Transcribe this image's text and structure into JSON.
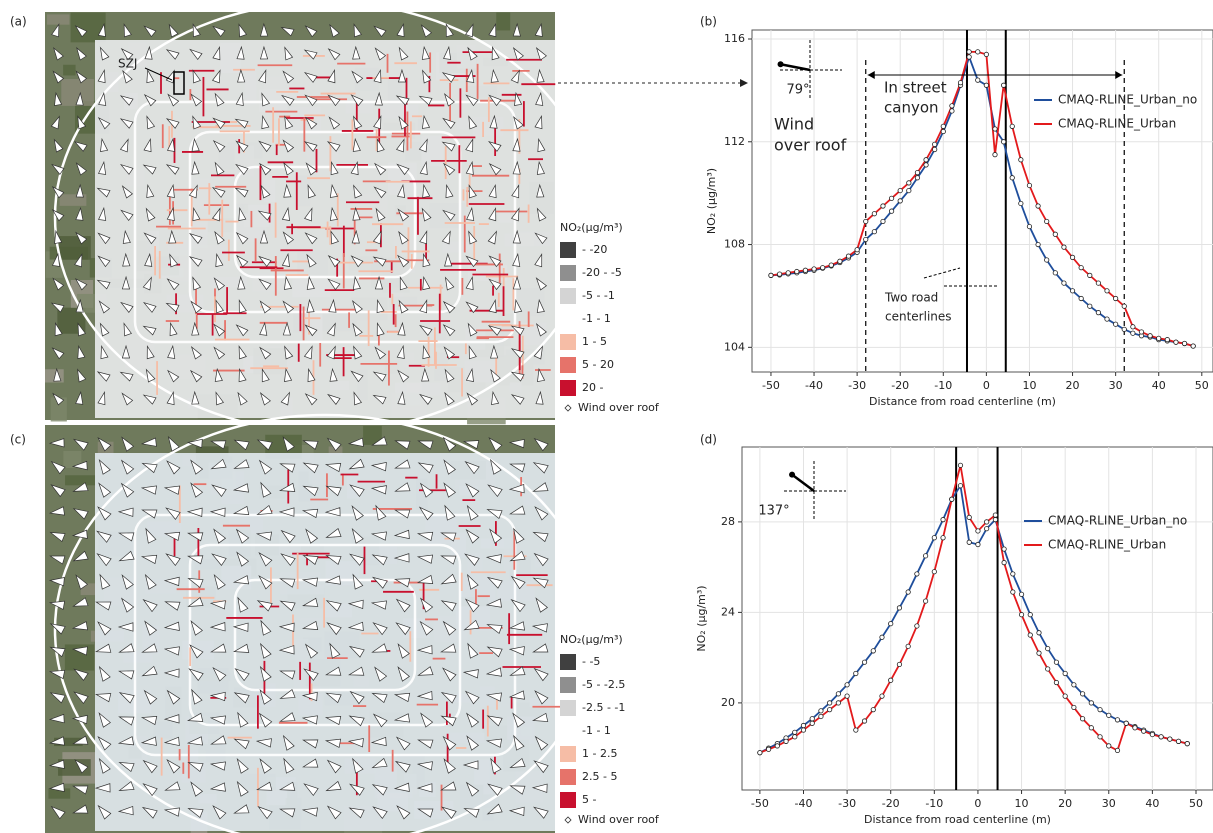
{
  "panel_labels": [
    "(a)",
    "(b)",
    "(c)",
    "(d)"
  ],
  "maps": [
    {
      "site_label": "SZJ",
      "legend_title": "NO₂(μg/m³)",
      "legend_items": [
        {
          "label": "- -20",
          "color": "#404040"
        },
        {
          "label": "-20 - -5",
          "color": "#8f8f8f"
        },
        {
          "label": "-5 - -1",
          "color": "#d4d4d4"
        },
        {
          "label": "-1 - 1",
          "color": "#ffffff"
        },
        {
          "label": "1 - 5",
          "color": "#f6bda6"
        },
        {
          "label": "5 - 20",
          "color": "#e6736a"
        },
        {
          "label": "20 -",
          "color": "#c8102e"
        }
      ],
      "wind_label": "Wind over roof"
    },
    {
      "legend_title": "NO₂(μg/m³)",
      "legend_items": [
        {
          "label": "- -5",
          "color": "#404040"
        },
        {
          "label": "-5 - -2.5",
          "color": "#8f8f8f"
        },
        {
          "label": "-2.5 - -1",
          "color": "#d4d4d4"
        },
        {
          "label": "-1 - 1",
          "color": "#ffffff"
        },
        {
          "label": "1 - 2.5",
          "color": "#f6bda6"
        },
        {
          "label": "2.5 - 5",
          "color": "#e6736a"
        },
        {
          "label": "5 -",
          "color": "#c8102e"
        }
      ],
      "wind_label": "Wind over roof"
    }
  ],
  "chart_data": [
    {
      "type": "line",
      "x_label": "Distance from road centerline (m)",
      "y_label": "NO₂ (μg/m³)",
      "x": [
        -50,
        -48,
        -46,
        -44,
        -42,
        -40,
        -38,
        -36,
        -34,
        -32,
        -30,
        -28,
        -26,
        -24,
        -22,
        -20,
        -18,
        -16,
        -14,
        -12,
        -10,
        -8,
        -6,
        -4,
        -2,
        0,
        2,
        4,
        6,
        8,
        10,
        12,
        14,
        16,
        18,
        20,
        22,
        24,
        26,
        28,
        30,
        32,
        34,
        36,
        38,
        40,
        42,
        44,
        46,
        48
      ],
      "series": [
        {
          "name": "CMAQ-RLINE_Urban_no",
          "color": "#1f4e9c",
          "values": [
            106.8,
            106.82,
            106.86,
            106.9,
            106.95,
            107.0,
            107.08,
            107.17,
            107.3,
            107.48,
            107.7,
            108.2,
            108.5,
            108.9,
            109.3,
            109.7,
            110.1,
            110.6,
            111.1,
            111.7,
            112.4,
            113.2,
            114.2,
            115.3,
            114.4,
            114.2,
            112.5,
            112.0,
            110.6,
            109.6,
            108.7,
            108.0,
            107.4,
            106.9,
            106.5,
            106.2,
            105.9,
            105.6,
            105.35,
            105.1,
            104.9,
            104.7,
            104.55,
            104.45,
            104.4,
            104.3,
            104.25,
            104.2,
            104.15,
            104.05
          ]
        },
        {
          "name": "CMAQ-RLINE_Urban",
          "color": "#e31a1c",
          "values": [
            106.8,
            106.85,
            106.9,
            106.95,
            107.0,
            107.05,
            107.1,
            107.2,
            107.35,
            107.55,
            107.8,
            108.9,
            109.2,
            109.5,
            109.8,
            110.1,
            110.4,
            110.8,
            111.3,
            111.9,
            112.6,
            113.4,
            114.3,
            115.5,
            115.5,
            115.4,
            111.5,
            114.2,
            112.6,
            111.3,
            110.3,
            109.5,
            108.9,
            108.4,
            107.9,
            107.5,
            107.1,
            106.8,
            106.5,
            106.2,
            105.9,
            105.6,
            104.8,
            104.6,
            104.45,
            104.35,
            104.3,
            104.2,
            104.15,
            104.05
          ]
        }
      ],
      "xlim": [
        -54.4,
        52.6
      ],
      "ylim": [
        103.04,
        116.35
      ],
      "xticks": [
        -50,
        -40,
        -30,
        -20,
        -10,
        0,
        10,
        20,
        30,
        40,
        50
      ],
      "yticks": [
        104,
        108,
        112,
        116
      ],
      "grid": true,
      "centerlines": [
        -4.5,
        4.5
      ],
      "canyon_edges": [
        -28,
        32
      ],
      "annotations": [
        "79°",
        "In street",
        "canyon",
        "Wind",
        "over roof",
        "Two road",
        "centerlines"
      ]
    },
    {
      "type": "line",
      "x_label": "Distance from road centerline (m)",
      "y_label": "NO₂ (μg/m³)",
      "x": [
        -50,
        -48,
        -46,
        -44,
        -42,
        -40,
        -38,
        -36,
        -34,
        -32,
        -30,
        -28,
        -26,
        -24,
        -22,
        -20,
        -18,
        -16,
        -14,
        -12,
        -10,
        -8,
        -6,
        -4,
        -2,
        0,
        2,
        4,
        6,
        8,
        10,
        12,
        14,
        16,
        18,
        20,
        22,
        24,
        26,
        28,
        30,
        32,
        34,
        36,
        38,
        40,
        42,
        44,
        46,
        48
      ],
      "series": [
        {
          "name": "CMAQ-RLINE_Urban_no",
          "color": "#1f4e9c",
          "values": [
            17.8,
            18.0,
            18.2,
            18.45,
            18.7,
            19.0,
            19.3,
            19.65,
            20.0,
            20.4,
            20.8,
            21.3,
            21.8,
            22.3,
            22.9,
            23.5,
            24.2,
            24.9,
            25.7,
            26.5,
            27.3,
            28.1,
            29.0,
            29.6,
            27.1,
            27.0,
            27.7,
            28.1,
            26.8,
            25.7,
            24.8,
            23.9,
            23.1,
            22.4,
            21.8,
            21.3,
            20.8,
            20.4,
            20.0,
            19.7,
            19.45,
            19.25,
            19.1,
            18.95,
            18.8,
            18.65,
            18.5,
            18.4,
            18.3,
            18.2
          ]
        },
        {
          "name": "CMAQ-RLINE_Urban",
          "color": "#e31a1c",
          "values": [
            17.8,
            17.95,
            18.1,
            18.3,
            18.5,
            18.8,
            19.1,
            19.4,
            19.7,
            20.0,
            20.3,
            18.8,
            19.2,
            19.7,
            20.3,
            21.0,
            21.7,
            22.5,
            23.4,
            24.5,
            25.8,
            27.3,
            29.0,
            30.5,
            28.2,
            27.6,
            28.0,
            28.3,
            26.2,
            24.9,
            23.9,
            23.0,
            22.2,
            21.5,
            20.9,
            20.3,
            19.8,
            19.3,
            18.9,
            18.5,
            18.1,
            17.9,
            19.1,
            18.9,
            18.75,
            18.6,
            18.5,
            18.4,
            18.3,
            18.2
          ]
        }
      ],
      "xlim": [
        -54.1,
        53.9
      ],
      "ylim": [
        16.15,
        31.31
      ],
      "xticks": [
        -50,
        -40,
        -30,
        -20,
        -10,
        0,
        10,
        20,
        30,
        40,
        50
      ],
      "yticks": [
        20,
        24,
        28
      ],
      "grid": true,
      "centerlines": [
        -5,
        4.5
      ],
      "canyon_edges": [],
      "annotations": [
        "137°"
      ]
    }
  ]
}
